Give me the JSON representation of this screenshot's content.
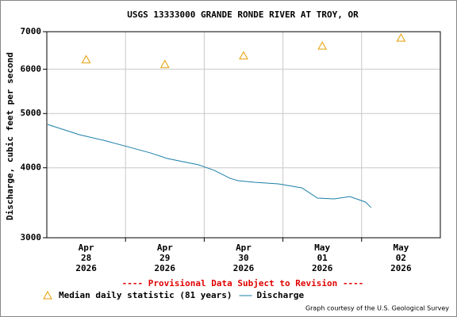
{
  "chart_data": {
    "type": "line",
    "title": "USGS 13333000 GRANDE RONDE RIVER AT TROY, OR",
    "y_label": "Discharge, cubic feet per second",
    "notice": "---- Provisional Data Subject to Revision ----",
    "credit": "Graph courtesy of the U.S. Geological Survey",
    "log_y": true,
    "grid": true,
    "xlim": [
      0,
      5
    ],
    "ylim": [
      3000,
      7000
    ],
    "xticks": [
      {
        "value": 0.5,
        "label": [
          "Apr",
          "28",
          "2026"
        ]
      },
      {
        "value": 1.5,
        "label": [
          "Apr",
          "29",
          "2026"
        ]
      },
      {
        "value": 2.5,
        "label": [
          "Apr",
          "30",
          "2026"
        ]
      },
      {
        "value": 3.5,
        "label": [
          "May",
          "01",
          "2026"
        ]
      },
      {
        "value": 4.5,
        "label": [
          "May",
          "02",
          "2026"
        ]
      }
    ],
    "x_gridlines": [
      1,
      2,
      3,
      4
    ],
    "yticks": [
      3000,
      4000,
      5000,
      6000,
      7000
    ],
    "series": [
      {
        "name": "Median daily statistic (81 years)",
        "color": "#e69c00",
        "marker": "triangle",
        "x": [
          0.5,
          1.5,
          2.5,
          3.5,
          4.5
        ],
        "values": [
          6240,
          6120,
          6340,
          6600,
          6820
        ]
      },
      {
        "name": "Discharge",
        "color": "#1a7fa8",
        "marker": "none",
        "x": [
          0.01,
          0.41,
          0.72,
          1.02,
          1.32,
          1.53,
          1.93,
          2.13,
          2.33,
          2.43,
          2.64,
          2.94,
          3.24,
          3.44,
          3.65,
          3.85,
          4.05,
          4.12
        ],
        "values": [
          4781,
          4584,
          4479,
          4365,
          4251,
          4156,
          4049,
          3957,
          3830,
          3793,
          3769,
          3744,
          3684,
          3531,
          3519,
          3554,
          3474,
          3396
        ]
      }
    ]
  }
}
